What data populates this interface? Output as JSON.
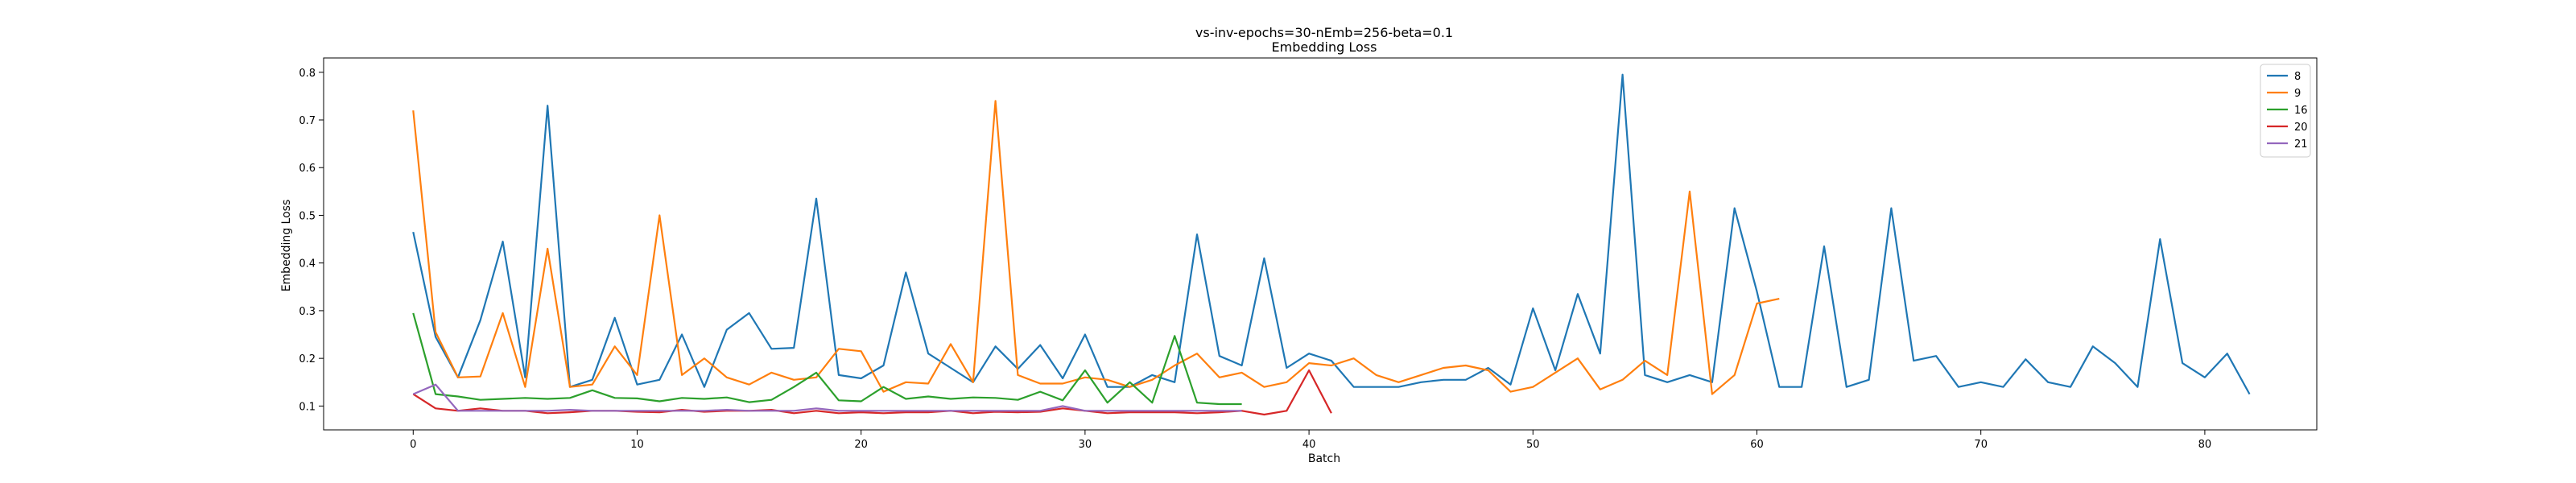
{
  "chart_data": {
    "type": "line",
    "title": "vs-inv-epochs=30-nEmb=256-beta=0.1",
    "subtitle": "Embedding Loss",
    "xlabel": "Batch",
    "ylabel": "Embedding Loss",
    "xlim": [
      -4,
      85
    ],
    "ylim": [
      0.05,
      0.83
    ],
    "xticks": [
      0,
      10,
      20,
      30,
      40,
      50,
      60,
      70,
      80
    ],
    "yticks": [
      0.1,
      0.2,
      0.3,
      0.4,
      0.5,
      0.6,
      0.7,
      0.8
    ],
    "legend_position": "top-right",
    "grid": false,
    "series": [
      {
        "name": "8",
        "color": "#1f77b4",
        "values": [
          0.465,
          0.245,
          0.16,
          0.28,
          0.445,
          0.16,
          0.73,
          0.14,
          0.155,
          0.285,
          0.145,
          0.155,
          0.25,
          0.14,
          0.26,
          0.295,
          0.22,
          0.222,
          0.535,
          0.165,
          0.158,
          0.185,
          0.38,
          0.21,
          0.18,
          0.15,
          0.225,
          0.178,
          0.228,
          0.158,
          0.25,
          0.14,
          0.14,
          0.165,
          0.15,
          0.46,
          0.205,
          0.185,
          0.41,
          0.18,
          0.21,
          0.195,
          0.14,
          0.14,
          0.14,
          0.15,
          0.155,
          0.155,
          0.18,
          0.145,
          0.305,
          0.175,
          0.335,
          0.21,
          0.795,
          0.165,
          0.15,
          0.165,
          0.15,
          0.515,
          0.34,
          0.14,
          0.14,
          0.435,
          0.14,
          0.155,
          0.515,
          0.195,
          0.205,
          0.14,
          0.15,
          0.14,
          0.198,
          0.15,
          0.14,
          0.225,
          0.19,
          0.14,
          0.45,
          0.19,
          0.16,
          0.21,
          0.125
        ]
      },
      {
        "name": "9",
        "color": "#ff7f0e",
        "values": [
          0.72,
          0.255,
          0.16,
          0.162,
          0.295,
          0.14,
          0.43,
          0.14,
          0.145,
          0.225,
          0.165,
          0.5,
          0.165,
          0.2,
          0.16,
          0.145,
          0.17,
          0.155,
          0.16,
          0.22,
          0.215,
          0.13,
          0.15,
          0.147,
          0.23,
          0.15,
          0.74,
          0.165,
          0.147,
          0.147,
          0.16,
          0.155,
          0.14,
          0.155,
          0.185,
          0.21,
          0.16,
          0.17,
          0.14,
          0.15,
          0.19,
          0.185,
          0.2,
          0.165,
          0.15,
          0.165,
          0.18,
          0.185,
          0.175,
          0.13,
          0.14,
          0.17,
          0.2,
          0.135,
          0.155,
          0.195,
          0.165,
          0.55,
          0.125,
          0.165,
          0.315,
          0.325
        ]
      },
      {
        "name": "16",
        "color": "#2ca02c",
        "values": [
          0.295,
          0.125,
          0.12,
          0.113,
          0.115,
          0.117,
          0.115,
          0.117,
          0.133,
          0.117,
          0.116,
          0.11,
          0.117,
          0.115,
          0.118,
          0.108,
          0.113,
          0.14,
          0.17,
          0.112,
          0.11,
          0.14,
          0.115,
          0.12,
          0.115,
          0.118,
          0.117,
          0.113,
          0.13,
          0.112,
          0.175,
          0.107,
          0.15,
          0.107,
          0.247,
          0.107,
          0.104,
          0.104
        ]
      },
      {
        "name": "20",
        "color": "#d62728",
        "values": [
          0.125,
          0.095,
          0.09,
          0.095,
          0.09,
          0.09,
          0.085,
          0.087,
          0.09,
          0.09,
          0.088,
          0.087,
          0.092,
          0.088,
          0.09,
          0.09,
          0.092,
          0.085,
          0.09,
          0.085,
          0.087,
          0.085,
          0.087,
          0.087,
          0.09,
          0.085,
          0.088,
          0.087,
          0.088,
          0.095,
          0.09,
          0.085,
          0.087,
          0.087,
          0.087,
          0.085,
          0.087,
          0.09,
          0.082,
          0.09,
          0.175,
          0.085
        ]
      },
      {
        "name": "21",
        "color": "#9467bd",
        "values": [
          0.125,
          0.145,
          0.09,
          0.09,
          0.09,
          0.09,
          0.09,
          0.092,
          0.09,
          0.09,
          0.09,
          0.09,
          0.09,
          0.09,
          0.092,
          0.09,
          0.09,
          0.09,
          0.095,
          0.09,
          0.09,
          0.09,
          0.09,
          0.09,
          0.09,
          0.09,
          0.09,
          0.09,
          0.09,
          0.1,
          0.09,
          0.09,
          0.09,
          0.09,
          0.09,
          0.09,
          0.09,
          0.09
        ]
      }
    ]
  }
}
